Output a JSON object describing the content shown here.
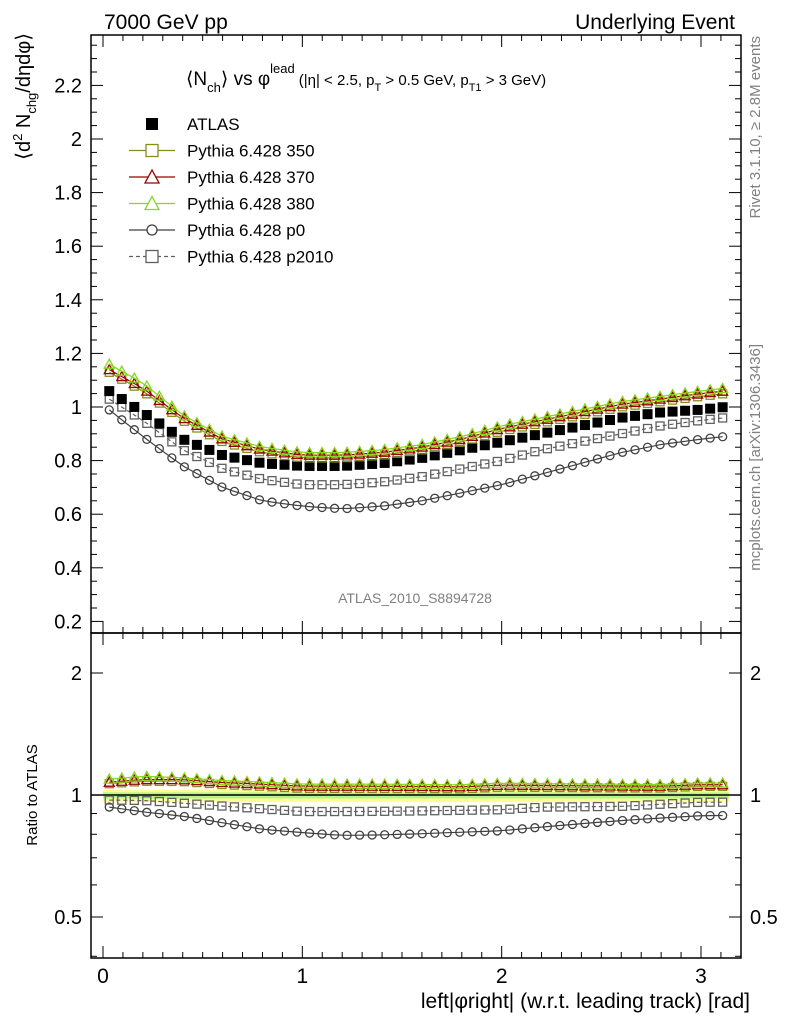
{
  "header": {
    "left": "7000 GeV pp",
    "right": "Underlying Event"
  },
  "side_labels": {
    "rivet": "Rivet 3.1.10, ≥ 2.8M events",
    "mcplots": "mcplots.cern.ch [arXiv:1306.3436]"
  },
  "analysis_id": "ATLAS_2010_S8894728",
  "title": {
    "main": "⟨N",
    "main_sub": "ch",
    "main_after": "⟩ vs φ",
    "main_sup": "lead",
    "cuts": "(|η| < 2.5, p",
    "cuts_sub1": "T",
    "cuts_mid": " > 0.5 GeV, p",
    "cuts_sub2": "T1",
    "cuts_end": " > 3 GeV)"
  },
  "y_label": {
    "open": "⟨d",
    "sup": "2",
    "n": " N",
    "sub": "chg",
    "close": "/dηdφ⟩"
  },
  "ratio_label": "Ratio to ATLAS",
  "x_label": "left|φright| (w.r.t. leading track) [rad]",
  "colors": {
    "atlas": "#000000",
    "p350": "#8c8c1c",
    "p370": "#9b0000",
    "p380": "#86d71d",
    "p0": "#404040",
    "p2010": "#606060",
    "band_yellow": "#ffff99",
    "band_green": "#b8f28a"
  },
  "chart_data": {
    "type": "scatter",
    "x_label": "left|φright| (w.r.t. leading track) [rad]",
    "main": {
      "y_label": "⟨d² N_chg/dηdφ⟩",
      "xlim": [
        -0.08,
        3.2
      ],
      "ylim": [
        0.18,
        2.4
      ]
    },
    "ratio": {
      "y_label": "Ratio to ATLAS",
      "scale": "log",
      "ylim": [
        0.4,
        2.45
      ]
    },
    "x_ticks": [
      "0",
      "1",
      "2",
      "3"
    ],
    "y_ticks": [
      "0.2",
      "0.4",
      "0.6",
      "0.8",
      "1",
      "1.2",
      "1.4",
      "1.6",
      "1.8",
      "2",
      "2.2"
    ],
    "ratio_ticks": [
      "0.5",
      "1",
      "2"
    ],
    "series": [
      {
        "name": "ATLAS",
        "marker": "filled-square",
        "anchors": [
          [
            0.03,
            1.06
          ],
          [
            0.2,
            0.98
          ],
          [
            0.4,
            0.88
          ],
          [
            0.6,
            0.82
          ],
          [
            0.8,
            0.79
          ],
          [
            1.0,
            0.78
          ],
          [
            1.2,
            0.78
          ],
          [
            1.4,
            0.79
          ],
          [
            1.6,
            0.81
          ],
          [
            1.8,
            0.84
          ],
          [
            2.0,
            0.87
          ],
          [
            2.2,
            0.9
          ],
          [
            2.4,
            0.93
          ],
          [
            2.6,
            0.96
          ],
          [
            2.8,
            0.98
          ],
          [
            3.0,
            0.99
          ],
          [
            3.12,
            1.0
          ]
        ]
      },
      {
        "name": "Pythia 6.428 350",
        "marker": "open-square",
        "line": "solid",
        "anchors": [
          [
            0.03,
            1.13
          ],
          [
            0.2,
            1.06
          ],
          [
            0.4,
            0.95
          ],
          [
            0.6,
            0.87
          ],
          [
            0.8,
            0.83
          ],
          [
            1.0,
            0.81
          ],
          [
            1.2,
            0.81
          ],
          [
            1.4,
            0.82
          ],
          [
            1.6,
            0.84
          ],
          [
            1.8,
            0.87
          ],
          [
            2.0,
            0.91
          ],
          [
            2.2,
            0.94
          ],
          [
            2.4,
            0.97
          ],
          [
            2.6,
            1.0
          ],
          [
            2.8,
            1.02
          ],
          [
            3.0,
            1.04
          ],
          [
            3.12,
            1.05
          ]
        ]
      },
      {
        "name": "Pythia 6.428 370",
        "marker": "open-triangle",
        "line": "solid",
        "anchors": [
          [
            0.03,
            1.14
          ],
          [
            0.2,
            1.07
          ],
          [
            0.4,
            0.96
          ],
          [
            0.6,
            0.88
          ],
          [
            0.8,
            0.84
          ],
          [
            1.0,
            0.82
          ],
          [
            1.2,
            0.82
          ],
          [
            1.4,
            0.83
          ],
          [
            1.6,
            0.85
          ],
          [
            1.8,
            0.88
          ],
          [
            2.0,
            0.92
          ],
          [
            2.2,
            0.95
          ],
          [
            2.4,
            0.98
          ],
          [
            2.6,
            1.01
          ],
          [
            2.8,
            1.03
          ],
          [
            3.0,
            1.05
          ],
          [
            3.12,
            1.06
          ]
        ]
      },
      {
        "name": "Pythia 6.428 380",
        "marker": "open-triangle",
        "line": "solid",
        "anchors": [
          [
            0.03,
            1.16
          ],
          [
            0.2,
            1.09
          ],
          [
            0.4,
            0.97
          ],
          [
            0.6,
            0.89
          ],
          [
            0.8,
            0.85
          ],
          [
            1.0,
            0.83
          ],
          [
            1.2,
            0.83
          ],
          [
            1.4,
            0.84
          ],
          [
            1.6,
            0.86
          ],
          [
            1.8,
            0.89
          ],
          [
            2.0,
            0.93
          ],
          [
            2.2,
            0.96
          ],
          [
            2.4,
            0.99
          ],
          [
            2.6,
            1.02
          ],
          [
            2.8,
            1.04
          ],
          [
            3.0,
            1.06
          ],
          [
            3.12,
            1.07
          ]
        ]
      },
      {
        "name": "Pythia 6.428 p0",
        "marker": "open-circle",
        "line": "solid",
        "anchors": [
          [
            0.03,
            0.99
          ],
          [
            0.2,
            0.89
          ],
          [
            0.4,
            0.78
          ],
          [
            0.6,
            0.7
          ],
          [
            0.8,
            0.65
          ],
          [
            1.0,
            0.63
          ],
          [
            1.2,
            0.62
          ],
          [
            1.4,
            0.63
          ],
          [
            1.6,
            0.65
          ],
          [
            1.8,
            0.68
          ],
          [
            2.0,
            0.71
          ],
          [
            2.2,
            0.75
          ],
          [
            2.4,
            0.79
          ],
          [
            2.6,
            0.83
          ],
          [
            2.8,
            0.86
          ],
          [
            3.0,
            0.88
          ],
          [
            3.12,
            0.89
          ]
        ]
      },
      {
        "name": "Pythia 6.428 p2010",
        "marker": "open-square",
        "line": "dashed",
        "anchors": [
          [
            0.03,
            1.03
          ],
          [
            0.2,
            0.95
          ],
          [
            0.4,
            0.84
          ],
          [
            0.6,
            0.77
          ],
          [
            0.8,
            0.73
          ],
          [
            1.0,
            0.71
          ],
          [
            1.2,
            0.71
          ],
          [
            1.4,
            0.72
          ],
          [
            1.6,
            0.74
          ],
          [
            1.8,
            0.77
          ],
          [
            2.0,
            0.8
          ],
          [
            2.2,
            0.84
          ],
          [
            2.4,
            0.87
          ],
          [
            2.6,
            0.9
          ],
          [
            2.8,
            0.93
          ],
          [
            3.0,
            0.95
          ],
          [
            3.12,
            0.96
          ]
        ]
      }
    ],
    "n_points": 50
  }
}
